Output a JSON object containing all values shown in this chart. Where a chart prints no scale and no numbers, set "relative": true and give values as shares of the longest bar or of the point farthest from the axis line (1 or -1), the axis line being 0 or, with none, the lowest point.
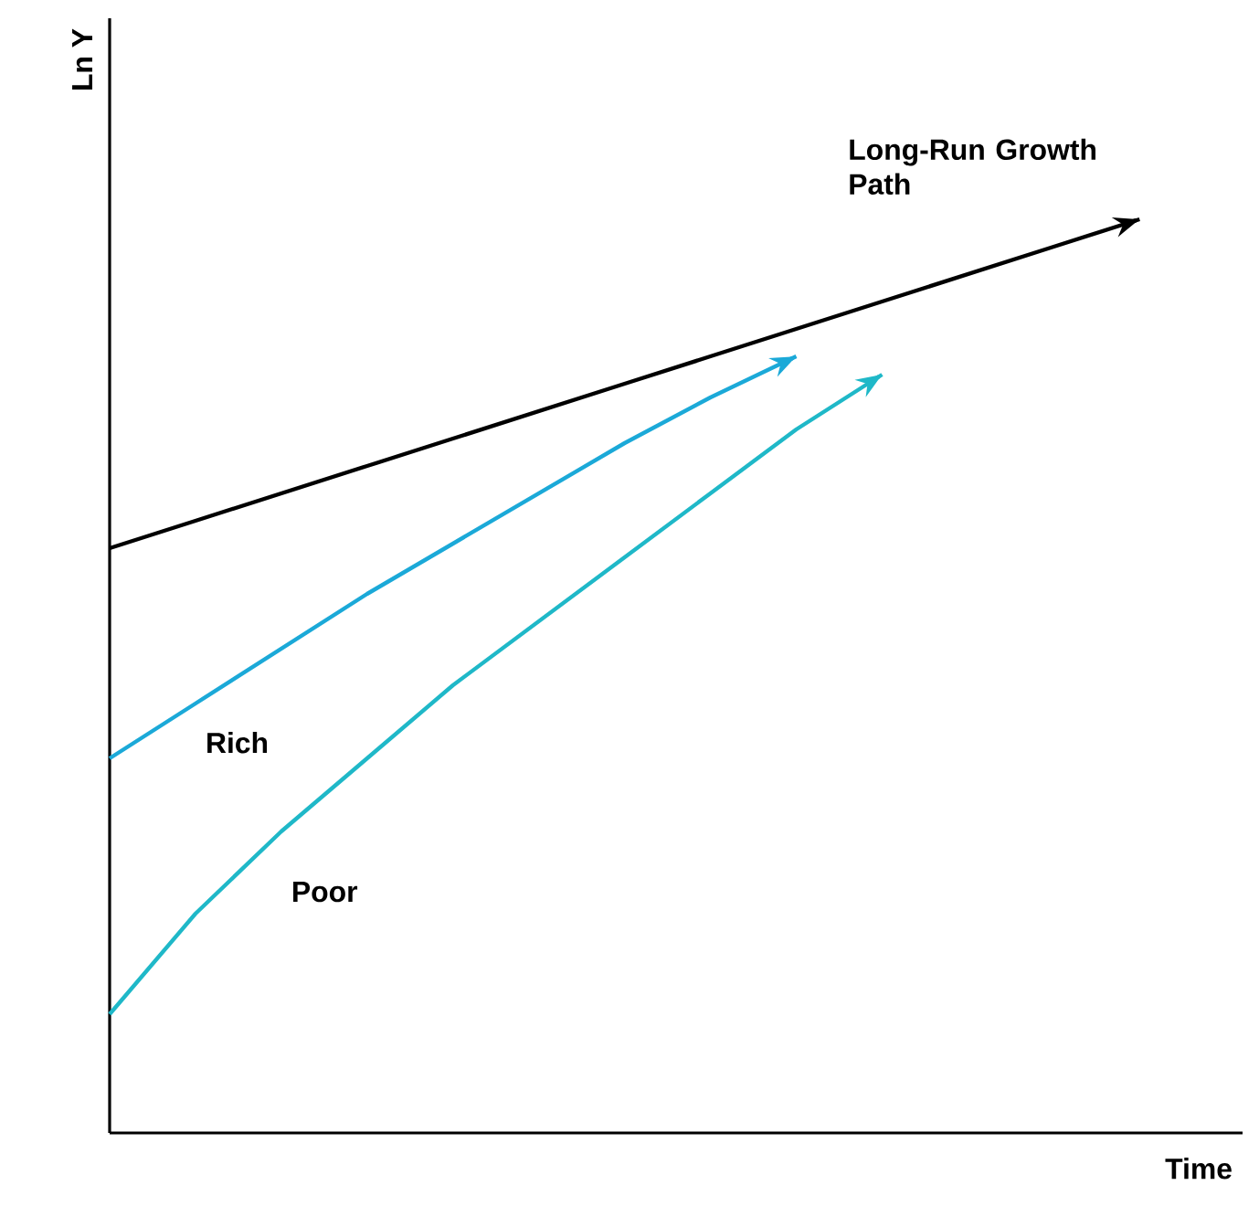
{
  "chart_data": {
    "type": "line",
    "xlabel": "Time",
    "ylabel": "Ln Y",
    "relative": true,
    "categories": [
      null,
      null,
      null,
      null,
      null,
      null,
      null,
      null,
      null,
      null,
      null,
      null,
      null
    ],
    "series": [
      {
        "name": "Long-Run Growth Path",
        "color": "#000000",
        "values": [
          0.64,
          0.67,
          0.7,
          0.73,
          0.76,
          0.79,
          0.82,
          0.85,
          0.88,
          0.91,
          0.94,
          0.97,
          1
        ]
      },
      {
        "name": "Rich",
        "color": "#1ba9d8",
        "values": [
          0.41,
          0.47,
          0.53,
          0.59,
          0.645,
          0.7,
          0.755,
          0.805,
          0.85,
          null,
          null,
          null,
          null
        ]
      },
      {
        "name": "Poor",
        "color": "#1fb8c8",
        "values": [
          0.13,
          0.24,
          0.33,
          0.41,
          0.49,
          0.56,
          0.63,
          0.7,
          0.77,
          0.83,
          null,
          null,
          null
        ]
      }
    ]
  }
}
